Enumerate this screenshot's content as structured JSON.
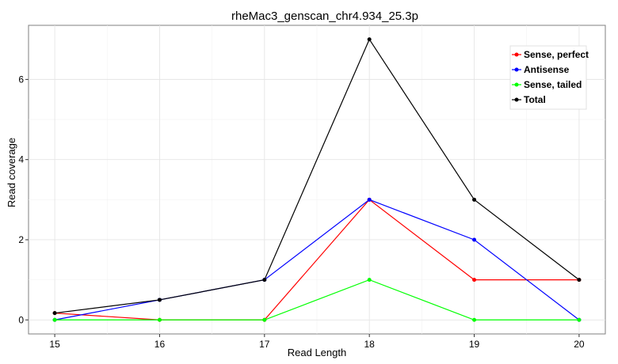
{
  "chart_data": {
    "type": "line",
    "title": "rheMac3_genscan_chr4.934_25.3p",
    "xlabel": "Read Length",
    "ylabel": "Read coverage",
    "x": [
      15,
      16,
      17,
      18,
      19,
      20
    ],
    "xlim": [
      14.75,
      20.25
    ],
    "ylim": [
      -0.35,
      7.35
    ],
    "yticks": [
      0,
      2,
      4,
      6
    ],
    "grid": true,
    "legend_position": "top-right",
    "series": [
      {
        "name": "Sense, perfect",
        "color": "#ff0000",
        "values": [
          0.17,
          0,
          0,
          3,
          1,
          1
        ]
      },
      {
        "name": "Antisense",
        "color": "#0000ff",
        "values": [
          0,
          0.5,
          1,
          3,
          2,
          0
        ]
      },
      {
        "name": "Sense, tailed",
        "color": "#00ff00",
        "values": [
          0,
          0,
          0,
          1,
          0,
          0
        ]
      },
      {
        "name": "Total",
        "color": "#000000",
        "values": [
          0.17,
          0.5,
          1,
          7,
          3,
          1
        ]
      }
    ]
  }
}
